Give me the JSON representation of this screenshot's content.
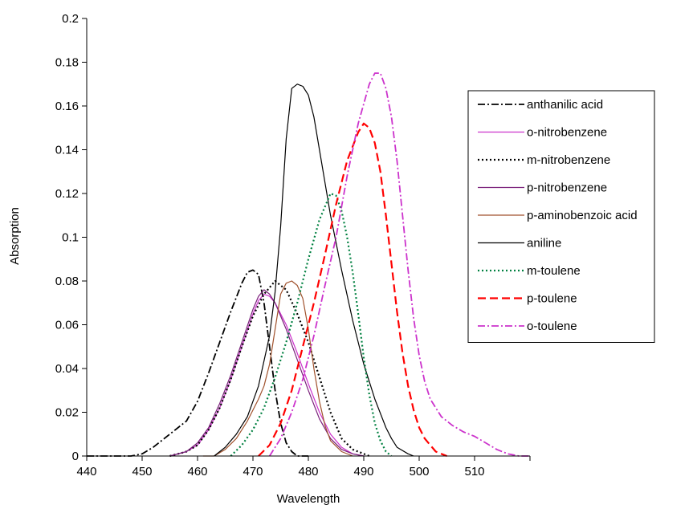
{
  "chart_data": {
    "type": "line",
    "title": "",
    "xlabel": "Wavelength",
    "ylabel": "Absorption",
    "xlim": [
      440,
      520
    ],
    "ylim": [
      0,
      0.2
    ],
    "x_ticks": [
      440,
      450,
      460,
      470,
      480,
      490,
      500,
      510
    ],
    "y_ticks": [
      0,
      0.02,
      0.04,
      0.06,
      0.08,
      0.1,
      0.12,
      0.14,
      0.16,
      0.18,
      0.2
    ],
    "y_tick_labels": [
      "0",
      "0.02",
      "0.04",
      "0.06",
      "0.08",
      "0.1",
      "0.12",
      "0.14",
      "0.16",
      "0.18",
      "0.2"
    ],
    "grid": false,
    "legend_position": "right",
    "series": [
      {
        "name": "anthanilic acid",
        "color": "#000000",
        "style": "dashdot",
        "x": [
          440,
          448,
          450,
          452,
          454,
          456,
          458,
          460,
          462,
          464,
          466,
          468,
          469,
          470,
          471,
          472,
          473,
          474,
          475,
          476,
          477,
          478,
          480
        ],
        "y": [
          0,
          0,
          0.001,
          0.004,
          0.008,
          0.012,
          0.016,
          0.025,
          0.038,
          0.052,
          0.066,
          0.079,
          0.084,
          0.085,
          0.083,
          0.07,
          0.05,
          0.03,
          0.015,
          0.006,
          0.002,
          0,
          0
        ]
      },
      {
        "name": "o-nitrobenzene",
        "color": "#cc33cc",
        "style": "solid",
        "x": [
          455,
          458,
          460,
          462,
          464,
          466,
          468,
          470,
          471,
          472,
          473,
          474,
          476,
          478,
          480,
          482,
          484,
          486,
          488,
          490
        ],
        "y": [
          0,
          0.002,
          0.005,
          0.012,
          0.022,
          0.035,
          0.05,
          0.065,
          0.071,
          0.074,
          0.073,
          0.07,
          0.06,
          0.047,
          0.033,
          0.02,
          0.01,
          0.004,
          0.001,
          0
        ]
      },
      {
        "name": "m-nitrobenzene",
        "color": "#000000",
        "style": "dotted",
        "x": [
          455,
          458,
          460,
          462,
          464,
          466,
          468,
          470,
          472,
          474,
          476,
          478,
          480,
          482,
          484,
          486,
          488,
          490,
          491
        ],
        "y": [
          0,
          0.002,
          0.005,
          0.012,
          0.022,
          0.035,
          0.05,
          0.064,
          0.074,
          0.08,
          0.076,
          0.065,
          0.052,
          0.036,
          0.02,
          0.008,
          0.003,
          0.001,
          0
        ]
      },
      {
        "name": "p-nitrobenzene",
        "color": "#7a1f7a",
        "style": "solid",
        "x": [
          455,
          458,
          460,
          462,
          464,
          466,
          468,
          470,
          471,
          472,
          473,
          474,
          476,
          478,
          480,
          482,
          484,
          486,
          488,
          490
        ],
        "y": [
          0,
          0.002,
          0.006,
          0.013,
          0.024,
          0.037,
          0.052,
          0.067,
          0.073,
          0.076,
          0.074,
          0.07,
          0.058,
          0.044,
          0.03,
          0.017,
          0.008,
          0.003,
          0.001,
          0
        ]
      },
      {
        "name": "p-aminobenzoic acid",
        "color": "#a0522d",
        "style": "solid",
        "x": [
          461,
          463,
          465,
          467,
          469,
          471,
          472,
          473,
          474,
          475,
          476,
          477,
          478,
          479,
          480,
          481,
          482,
          483,
          484,
          486,
          488
        ],
        "y": [
          0,
          0,
          0.003,
          0.008,
          0.016,
          0.026,
          0.032,
          0.042,
          0.058,
          0.074,
          0.079,
          0.08,
          0.078,
          0.072,
          0.058,
          0.04,
          0.025,
          0.014,
          0.007,
          0.002,
          0
        ]
      },
      {
        "name": "aniline",
        "color": "#000000",
        "style": "solid",
        "x": [
          463,
          465,
          467,
          469,
          471,
          473,
          474,
          475,
          476,
          477,
          478,
          479,
          480,
          481,
          482,
          484,
          486,
          488,
          490,
          492,
          494,
          495,
          496,
          498,
          499
        ],
        "y": [
          0,
          0.004,
          0.01,
          0.018,
          0.032,
          0.055,
          0.075,
          0.105,
          0.145,
          0.168,
          0.17,
          0.169,
          0.165,
          0.155,
          0.14,
          0.11,
          0.085,
          0.062,
          0.042,
          0.026,
          0.013,
          0.008,
          0.004,
          0.001,
          0
        ]
      },
      {
        "name": "m-toulene",
        "color": "#008040",
        "style": "dotted",
        "x": [
          466,
          468,
          470,
          472,
          474,
          476,
          478,
          480,
          482,
          484,
          485,
          486,
          487,
          488,
          489,
          490,
          491,
          492,
          493,
          494,
          495
        ],
        "y": [
          0,
          0.005,
          0.012,
          0.022,
          0.036,
          0.052,
          0.07,
          0.09,
          0.108,
          0.12,
          0.119,
          0.112,
          0.1,
          0.084,
          0.065,
          0.045,
          0.028,
          0.015,
          0.007,
          0.002,
          0
        ]
      },
      {
        "name": "p-toulene",
        "color": "#ff0000",
        "style": "longdash",
        "x": [
          471,
          473,
          475,
          477,
          479,
          481,
          483,
          485,
          487,
          489,
          490,
          491,
          492,
          493,
          494,
          495,
          496,
          497,
          498,
          499,
          500,
          501,
          502,
          503,
          504,
          505
        ],
        "y": [
          0,
          0.005,
          0.015,
          0.03,
          0.05,
          0.07,
          0.092,
          0.115,
          0.135,
          0.148,
          0.152,
          0.15,
          0.143,
          0.13,
          0.11,
          0.088,
          0.066,
          0.047,
          0.032,
          0.021,
          0.013,
          0.008,
          0.005,
          0.002,
          0.001,
          0
        ]
      },
      {
        "name": "o-toulene",
        "color": "#cc33cc",
        "style": "dashdot",
        "x": [
          473,
          475,
          477,
          479,
          481,
          483,
          485,
          487,
          489,
          491,
          492,
          493,
          494,
          495,
          496,
          497,
          498,
          499,
          500,
          501,
          502,
          504,
          506,
          508,
          510,
          512,
          514,
          516,
          518,
          520
        ],
        "y": [
          0,
          0.008,
          0.02,
          0.035,
          0.055,
          0.078,
          0.1,
          0.128,
          0.152,
          0.17,
          0.175,
          0.175,
          0.168,
          0.155,
          0.135,
          0.11,
          0.085,
          0.063,
          0.046,
          0.034,
          0.026,
          0.018,
          0.014,
          0.011,
          0.009,
          0.006,
          0.003,
          0.001,
          0,
          0
        ]
      }
    ]
  }
}
